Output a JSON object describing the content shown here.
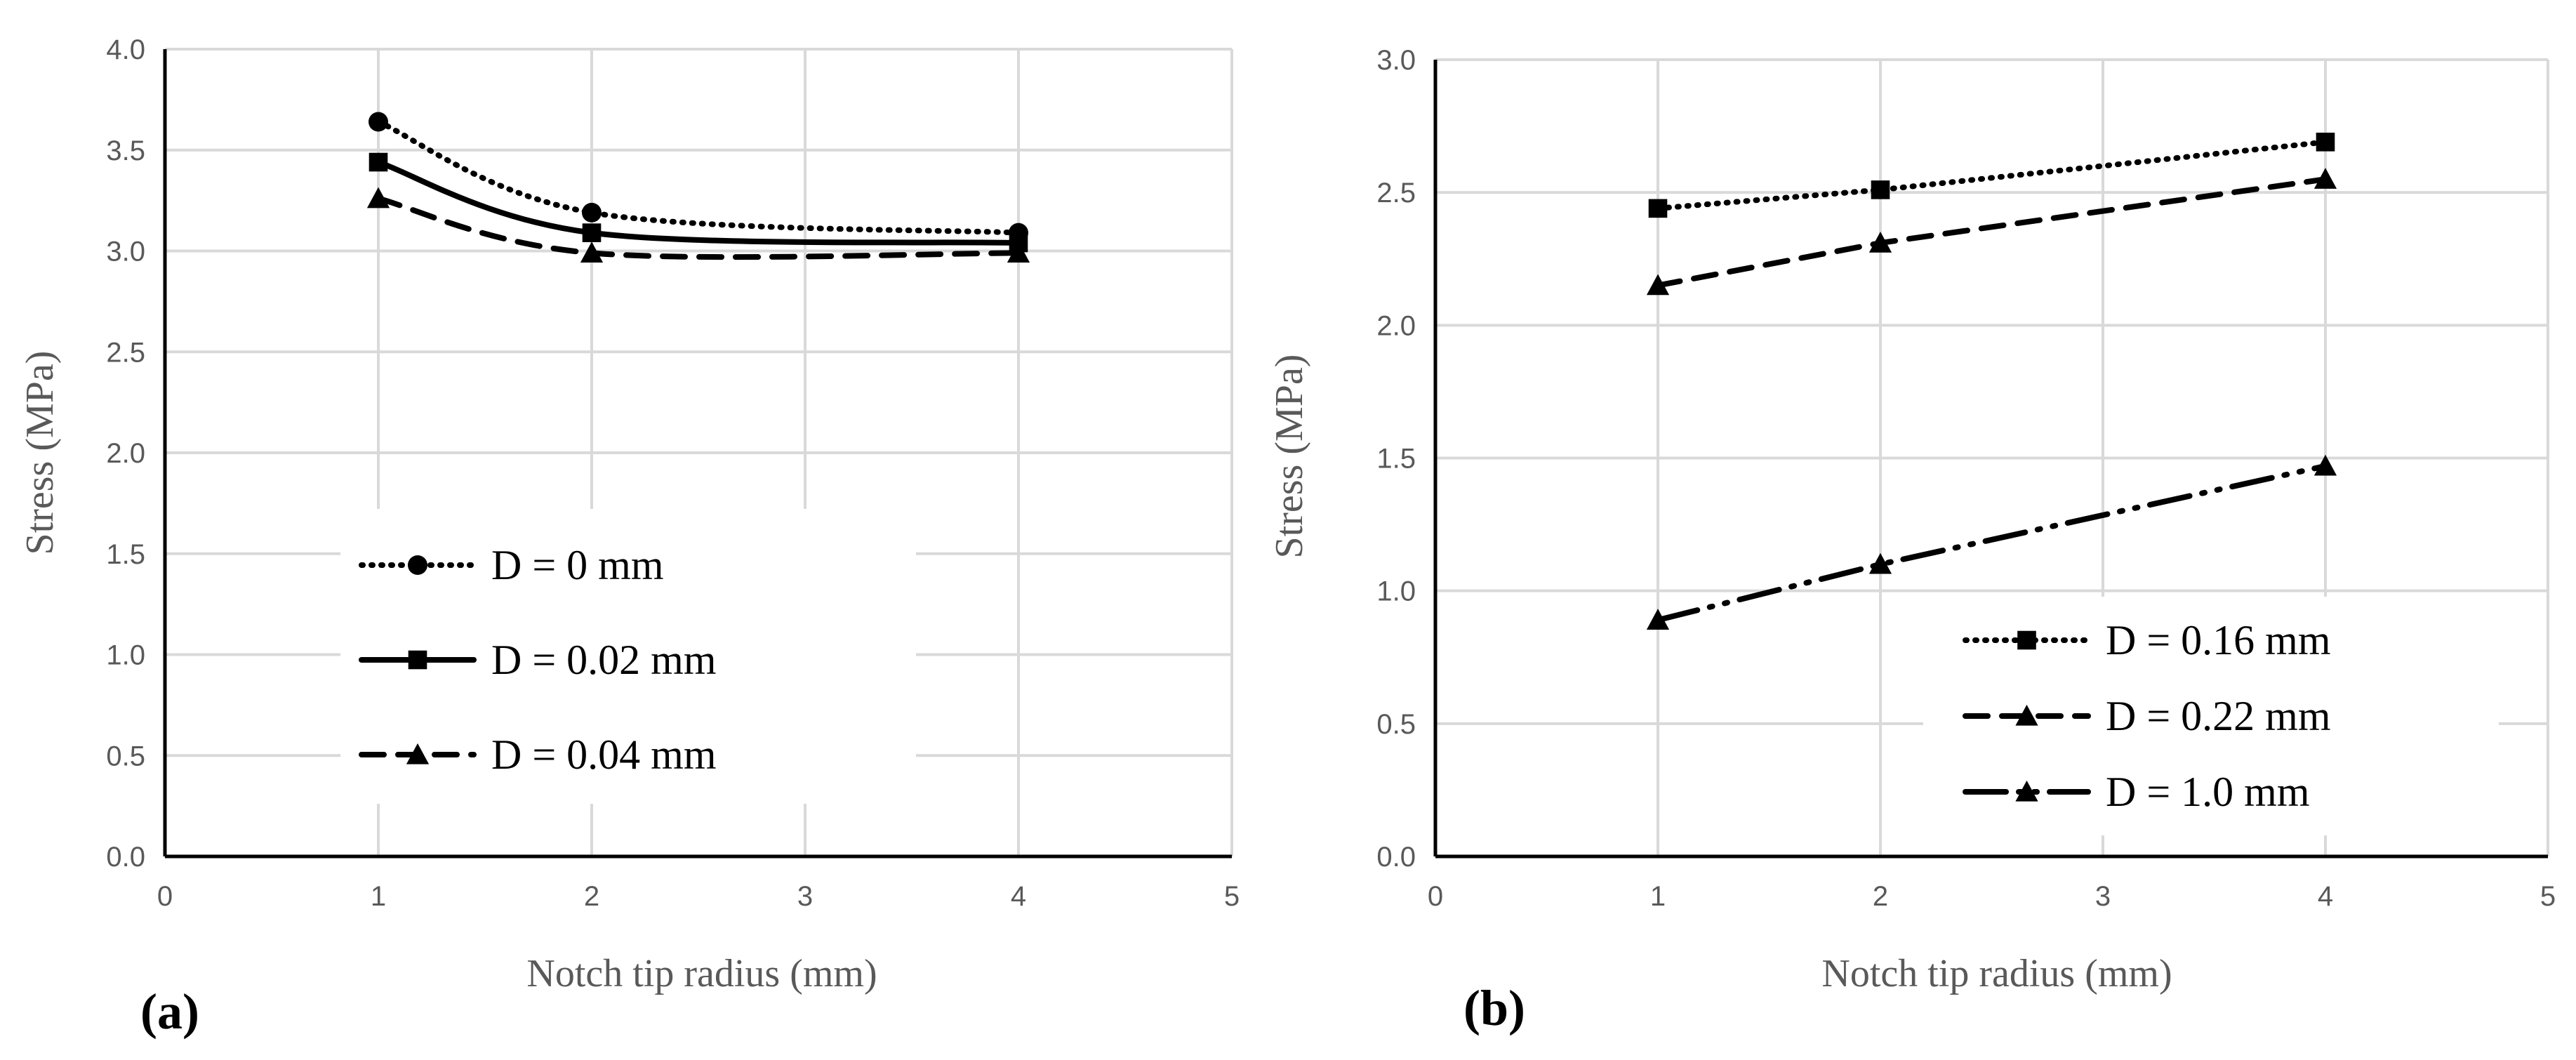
{
  "chart_data": [
    {
      "type": "line",
      "panel_label": "(a)",
      "title": "",
      "xlabel": "Notch tip radius (mm)",
      "ylabel": "Stress (MPa)",
      "xlim": [
        0,
        5
      ],
      "ylim": [
        0,
        4
      ],
      "xticks": [
        "0",
        "1",
        "2",
        "3",
        "4",
        "5"
      ],
      "yticks": [
        "0.0",
        "0.5",
        "1.0",
        "1.5",
        "2.0",
        "2.5",
        "3.0",
        "3.5",
        "4.0"
      ],
      "grid": true,
      "smooth": true,
      "legend_position": "lower-left",
      "x": [
        1,
        2,
        4
      ],
      "series": [
        {
          "name": "D = 0 mm",
          "values": [
            3.64,
            3.19,
            3.09
          ],
          "marker": "circle",
          "line": "dotted"
        },
        {
          "name": "D = 0.02 mm",
          "values": [
            3.44,
            3.09,
            3.04
          ],
          "marker": "square",
          "line": "solid"
        },
        {
          "name": "D = 0.04 mm",
          "values": [
            3.26,
            2.99,
            2.99
          ],
          "marker": "triangle",
          "line": "dashed"
        }
      ]
    },
    {
      "type": "line",
      "panel_label": "(b)",
      "title": "",
      "xlabel": "Notch tip radius (mm)",
      "ylabel": "Stress (MPa)",
      "xlim": [
        0,
        5
      ],
      "ylim": [
        0,
        3
      ],
      "xticks": [
        "0",
        "1",
        "2",
        "3",
        "4",
        "5"
      ],
      "yticks": [
        "0.0",
        "0.5",
        "1.0",
        "1.5",
        "2.0",
        "2.5",
        "3.0"
      ],
      "grid": true,
      "smooth": false,
      "legend_position": "lower-right",
      "x": [
        1,
        2,
        4
      ],
      "series": [
        {
          "name": "D = 0.16 mm",
          "values": [
            2.44,
            2.51,
            2.69
          ],
          "marker": "square",
          "line": "dotted"
        },
        {
          "name": "D = 0.22 mm",
          "values": [
            2.15,
            2.31,
            2.55
          ],
          "marker": "triangle",
          "line": "dashed"
        },
        {
          "name": "D = 1.0 mm",
          "values": [
            0.89,
            1.1,
            1.47
          ],
          "marker": "triangle",
          "line": "dashdotdot"
        }
      ]
    }
  ]
}
